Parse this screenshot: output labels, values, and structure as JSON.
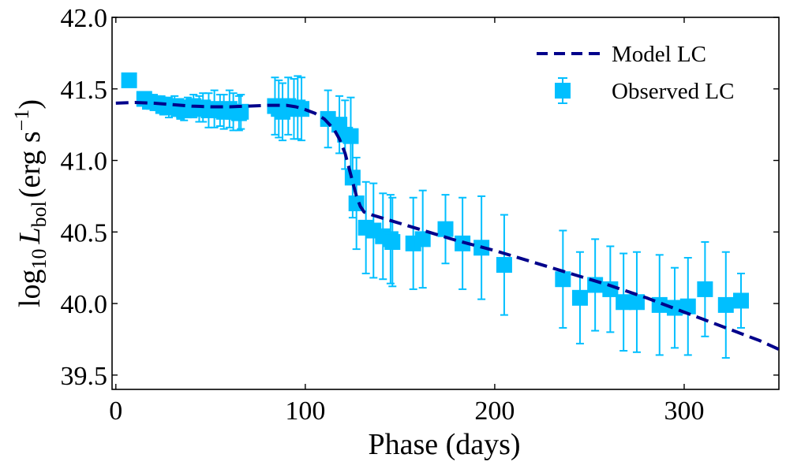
{
  "chart_data": {
    "type": "scatter",
    "title": "",
    "xlabel": "Phase (days)",
    "ylabel": {
      "prefix": "log",
      "prefix_sub": "10",
      "var": "L",
      "var_sub": "bol",
      "units_open": "(erg s",
      "units_sup": "−1",
      "units_close": ")"
    },
    "xlim": [
      -2,
      350
    ],
    "ylim": [
      39.4,
      42.0
    ],
    "xticks": [
      0,
      100,
      200,
      300
    ],
    "xtick_labels": [
      "0",
      "100",
      "200",
      "300"
    ],
    "yticks": [
      39.5,
      40.0,
      40.5,
      41.0,
      41.5,
      42.0
    ],
    "ytick_labels": [
      "39.5",
      "40.0",
      "40.5",
      "41.0",
      "41.5",
      "42.0"
    ],
    "grid": false,
    "legend": {
      "position": "top-right",
      "entries": [
        "Model LC",
        "Observed LC"
      ]
    },
    "colors": {
      "model": "#00008b",
      "observed": "#00bfff"
    },
    "series": [
      {
        "name": "Model LC",
        "style": "dashed-line",
        "x": [
          0,
          10,
          20,
          30,
          40,
          50,
          60,
          70,
          80,
          90,
          95,
          100,
          105,
          110,
          115,
          118,
          121,
          123,
          125,
          127,
          129,
          131,
          135,
          145,
          160,
          180,
          200,
          220,
          240,
          260,
          280,
          300,
          320,
          340,
          350
        ],
        "y": [
          41.4,
          41.405,
          41.4,
          41.39,
          41.38,
          41.375,
          41.375,
          41.38,
          41.385,
          41.385,
          41.375,
          41.355,
          41.33,
          41.29,
          41.22,
          41.15,
          41.05,
          40.95,
          40.85,
          40.75,
          40.68,
          40.64,
          40.62,
          40.58,
          40.52,
          40.44,
          40.37,
          40.29,
          40.21,
          40.13,
          40.04,
          39.94,
          39.84,
          39.74,
          39.68
        ]
      },
      {
        "name": "Observed LC",
        "style": "square-errorbar",
        "x": [
          7,
          15,
          18,
          22,
          25,
          28,
          31,
          34,
          36,
          38,
          41,
          44,
          46,
          49,
          52,
          55,
          57,
          60,
          62,
          65,
          66,
          84,
          86,
          88,
          91,
          94,
          96,
          98,
          112,
          118,
          121,
          124,
          125,
          127,
          132,
          136,
          141,
          145,
          146,
          157,
          162,
          174,
          183,
          193,
          205,
          236,
          245,
          253,
          261,
          268,
          275,
          287,
          295,
          302,
          311,
          322,
          330
        ],
        "y": [
          41.56,
          41.43,
          41.41,
          41.4,
          41.38,
          41.37,
          41.38,
          41.36,
          41.35,
          41.37,
          41.38,
          41.36,
          41.37,
          41.35,
          41.36,
          41.35,
          41.34,
          41.36,
          41.34,
          41.33,
          41.34,
          41.38,
          41.36,
          41.34,
          41.38,
          41.36,
          41.37,
          41.36,
          41.29,
          41.25,
          41.18,
          41.17,
          40.88,
          40.7,
          40.53,
          40.51,
          40.47,
          40.45,
          40.43,
          40.42,
          40.45,
          40.52,
          40.42,
          40.39,
          40.27,
          40.17,
          40.04,
          40.13,
          40.1,
          40.01,
          40.01,
          39.99,
          39.97,
          39.98,
          40.1,
          39.99,
          40.02
        ],
        "yerr": [
          0,
          0,
          0.05,
          0.05,
          0.06,
          0.07,
          0.07,
          0.07,
          0.07,
          0.07,
          0.08,
          0.09,
          0.1,
          0.12,
          0.13,
          0.11,
          0.12,
          0.13,
          0.13,
          0.12,
          0.12,
          0.2,
          0.2,
          0.2,
          0.2,
          0.21,
          0.22,
          0.22,
          0.2,
          0.2,
          0.24,
          0.27,
          0.28,
          0.32,
          0.32,
          0.33,
          0.3,
          0.31,
          0.31,
          0.32,
          0.34,
          0.24,
          0.32,
          0.36,
          0.35,
          0.34,
          0.32,
          0.32,
          0.3,
          0.34,
          0.35,
          0.35,
          0.28,
          0.34,
          0.33,
          0.37,
          0.19
        ]
      }
    ]
  }
}
